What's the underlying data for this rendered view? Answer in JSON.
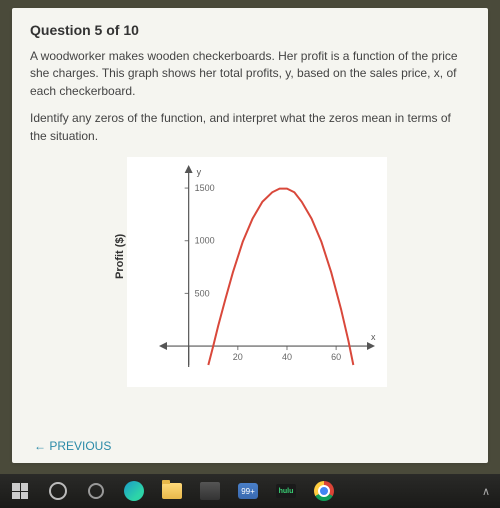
{
  "question": {
    "number": "Question 5 of 10",
    "paragraph1": "A woodworker makes wooden checkerboards. Her profit is a function of the price she charges. This graph shows her total profits, y, based on the sales price, x, of each checkerboard.",
    "paragraph2": "Identify any zeros of the function, and interpret what the zeros mean in terms of the situation."
  },
  "nav": {
    "previous": "← PREVIOUS"
  },
  "chart": {
    "type": "line",
    "y_label": "Profit ($)",
    "y_axis_letter": "y",
    "x_axis_letter": "x",
    "y_ticks": [
      500,
      1000,
      1500
    ],
    "y_tick_labels": [
      "500",
      "1000",
      "1500"
    ],
    "x_ticks": [
      20,
      40,
      60
    ],
    "x_tick_labels": [
      "20",
      "40",
      "60"
    ],
    "xlim": [
      -8,
      75
    ],
    "ylim": [
      -180,
      1700
    ],
    "curve_color": "#d9483b",
    "curve_width": 2,
    "axis_color": "#555555",
    "tick_color": "#777777",
    "grid_color": "#dddddd",
    "background_color": "#ffffff",
    "tick_fontsize": 9,
    "curve_points": [
      [
        8,
        -180
      ],
      [
        10,
        0
      ],
      [
        12,
        190
      ],
      [
        15,
        450
      ],
      [
        18,
        700
      ],
      [
        22,
        990
      ],
      [
        26,
        1210
      ],
      [
        30,
        1370
      ],
      [
        34,
        1460
      ],
      [
        37,
        1495
      ],
      [
        40,
        1495
      ],
      [
        43,
        1460
      ],
      [
        46,
        1370
      ],
      [
        50,
        1210
      ],
      [
        54,
        990
      ],
      [
        58,
        700
      ],
      [
        62,
        350
      ],
      [
        65,
        50
      ],
      [
        67,
        -180
      ]
    ]
  },
  "taskbar": {
    "mail_badge": "99+",
    "hulu_label": "hulu"
  }
}
